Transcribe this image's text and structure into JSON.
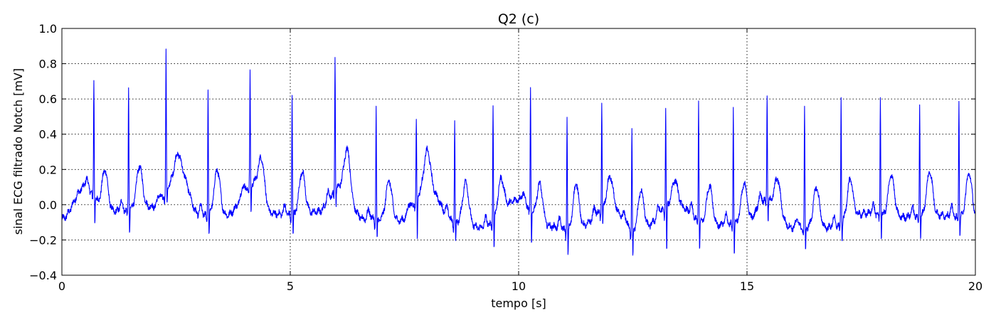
{
  "chart_data": {
    "type": "line",
    "title": "Q2 (c)",
    "xlabel": "tempo [s]",
    "ylabel": "sinal ECG filtrado Notch [mV]",
    "xlim": [
      0,
      20
    ],
    "ylim": [
      -0.4,
      1.0
    ],
    "x_ticks": [
      0,
      5,
      10,
      15,
      20
    ],
    "y_ticks": [
      -0.4,
      -0.2,
      0.0,
      0.2,
      0.4,
      0.6,
      0.8,
      1.0
    ],
    "x_tick_labels": [
      "0",
      "5",
      "10",
      "15",
      "20"
    ],
    "y_tick_labels": [
      "−0.4",
      "−0.2",
      "0.0",
      "0.2",
      "0.4",
      "0.6",
      "0.8",
      "1.0"
    ],
    "grid": true,
    "line_color": "#0000ff",
    "series": [
      {
        "r_peaks": {
          "t": [
            0.7,
            1.46,
            2.28,
            3.2,
            4.12,
            5.04,
            5.98,
            6.88,
            7.76,
            8.6,
            9.44,
            10.26,
            11.06,
            11.82,
            12.48,
            13.22,
            13.94,
            14.7,
            15.44,
            16.26,
            17.06,
            17.92,
            18.78,
            19.64
          ],
          "peak_mV": [
            0.71,
            0.66,
            0.86,
            0.67,
            0.74,
            0.62,
            0.84,
            0.55,
            0.48,
            0.49,
            0.58,
            0.65,
            0.49,
            0.59,
            0.43,
            0.54,
            0.6,
            0.55,
            0.63,
            0.56,
            0.61,
            0.63,
            0.58,
            0.61
          ],
          "s_mV": [
            -0.1,
            -0.17,
            0.0,
            -0.19,
            -0.05,
            -0.18,
            0.0,
            -0.22,
            -0.21,
            -0.23,
            -0.27,
            -0.24,
            -0.3,
            -0.15,
            -0.31,
            -0.29,
            -0.26,
            -0.28,
            -0.1,
            -0.27,
            -0.22,
            -0.19,
            -0.2,
            -0.19
          ]
        },
        "t_waves": {
          "t": [
            0.94,
            1.7,
            2.54,
            3.4,
            4.36,
            5.26,
            6.24,
            7.16,
            8.0,
            8.84,
            9.62,
            10.46,
            11.26,
            12.0,
            12.68,
            13.42,
            14.18,
            14.94,
            15.66,
            16.52,
            17.26,
            18.16,
            19.0,
            19.86
          ],
          "peak_mV": [
            0.2,
            0.22,
            0.29,
            0.2,
            0.27,
            0.19,
            0.32,
            0.14,
            0.31,
            0.13,
            0.15,
            0.12,
            0.12,
            0.16,
            0.08,
            0.14,
            0.11,
            0.12,
            0.15,
            0.1,
            0.14,
            0.17,
            0.19,
            0.18
          ]
        },
        "baseline_mV": [
          [
            0.0,
            -0.08
          ],
          [
            0.5,
            0.1
          ],
          [
            1.0,
            -0.04
          ],
          [
            2.0,
            -0.01
          ],
          [
            2.6,
            0.18
          ],
          [
            3.0,
            -0.06
          ],
          [
            3.6,
            -0.06
          ],
          [
            4.2,
            0.12
          ],
          [
            4.6,
            -0.05
          ],
          [
            5.0,
            -0.06
          ],
          [
            5.6,
            -0.04
          ],
          [
            6.1,
            0.1
          ],
          [
            6.6,
            -0.08
          ],
          [
            7.4,
            -0.09
          ],
          [
            8.0,
            0.1
          ],
          [
            8.6,
            -0.1
          ],
          [
            9.2,
            -0.13
          ],
          [
            10.0,
            0.03
          ],
          [
            10.6,
            -0.12
          ],
          [
            11.2,
            -0.15
          ],
          [
            12.0,
            -0.02
          ],
          [
            12.6,
            -0.16
          ],
          [
            13.4,
            0.0
          ],
          [
            14.2,
            -0.12
          ],
          [
            15.0,
            -0.1
          ],
          [
            15.4,
            0.03
          ],
          [
            16.0,
            -0.13
          ],
          [
            16.8,
            -0.13
          ],
          [
            17.6,
            -0.05
          ],
          [
            18.4,
            -0.07
          ],
          [
            19.2,
            -0.06
          ],
          [
            20.0,
            -0.08
          ]
        ]
      }
    ]
  }
}
